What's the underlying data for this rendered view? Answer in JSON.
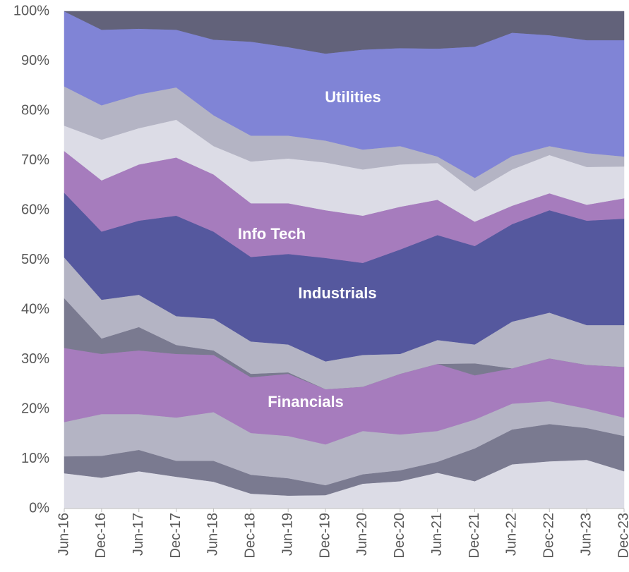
{
  "chart_data": {
    "type": "stacked_area",
    "categories": [
      "Jun-16",
      "Dec-16",
      "Jun-17",
      "Dec-17",
      "Jun-18",
      "Dec-18",
      "Jun-19",
      "Dec-19",
      "Jun-20",
      "Dec-20",
      "Jun-21",
      "Dec-21",
      "Jun-22",
      "Dec-22",
      "Jun-23",
      "Dec-23"
    ],
    "ylim": [
      0,
      100
    ],
    "yticks": [
      {
        "value": 0,
        "label": "0%"
      },
      {
        "value": 10,
        "label": "10%"
      },
      {
        "value": 20,
        "label": "20%"
      },
      {
        "value": 30,
        "label": "30%"
      },
      {
        "value": 40,
        "label": "40%"
      },
      {
        "value": 50,
        "label": "50%"
      },
      {
        "value": 60,
        "label": "60%"
      },
      {
        "value": 70,
        "label": "70%"
      },
      {
        "value": 80,
        "label": "80%"
      },
      {
        "value": 90,
        "label": "90%"
      },
      {
        "value": 100,
        "label": "100%"
      }
    ],
    "series": [
      {
        "name": null,
        "color": "#dcdce6",
        "values": [
          7.1,
          6.2,
          7.5,
          6.4,
          5.4,
          3.0,
          2.6,
          2.7,
          5.0,
          5.5,
          7.2,
          5.5,
          8.9,
          9.5,
          9.8,
          7.5
        ]
      },
      {
        "name": null,
        "color": "#7a7a90",
        "values": [
          3.4,
          4.4,
          4.3,
          3.2,
          4.2,
          3.8,
          3.5,
          2.0,
          1.9,
          2.2,
          2.2,
          6.6,
          7.0,
          7.5,
          6.4,
          7.1
        ]
      },
      {
        "name": null,
        "color": "#b4b4c4",
        "values": [
          6.9,
          8.4,
          7.2,
          8.7,
          9.8,
          8.4,
          8.5,
          8.2,
          8.7,
          7.2,
          6.2,
          5.8,
          5.2,
          4.6,
          3.9,
          3.7
        ]
      },
      {
        "name": "Financials",
        "color": "#a67cbd",
        "values": [
          14.9,
          12.1,
          12.8,
          12.8,
          11.5,
          11.2,
          12.5,
          11.1,
          8.9,
          12.2,
          13.5,
          8.9,
          7.1,
          8.6,
          8.8,
          10.2
        ]
      },
      {
        "name": null,
        "color": "#7a7a90",
        "values": [
          10.0,
          3.1,
          4.7,
          1.8,
          0.9,
          0.7,
          0.3,
          0,
          0,
          0,
          0,
          2.4,
          0,
          0,
          0,
          0
        ]
      },
      {
        "name": null,
        "color": "#b4b4c4",
        "values": [
          8.2,
          7.8,
          6.5,
          5.8,
          6.4,
          6.5,
          5.6,
          5.6,
          6.4,
          4.0,
          4.8,
          3.8,
          9.4,
          9.2,
          8.0,
          8.4
        ]
      },
      {
        "name": "Industrials",
        "color": "#55589e",
        "values": [
          13.0,
          13.7,
          14.9,
          20.2,
          17.5,
          17.0,
          18.2,
          20.8,
          18.5,
          21.0,
          21.1,
          19.8,
          19.6,
          20.6,
          21.0,
          21.4
        ]
      },
      {
        "name": "Info Tech",
        "color": "#a67cbd",
        "values": [
          8.4,
          10.3,
          11.3,
          11.7,
          11.5,
          10.8,
          10.2,
          9.6,
          9.5,
          8.6,
          7.1,
          4.9,
          3.7,
          3.4,
          3.2,
          4.1
        ]
      },
      {
        "name": null,
        "color": "#dcdce6",
        "values": [
          5.1,
          8.2,
          7.3,
          7.6,
          5.7,
          8.4,
          9.0,
          9.6,
          9.3,
          8.5,
          7.4,
          6.1,
          7.3,
          7.7,
          7.6,
          6.4
        ]
      },
      {
        "name": null,
        "color": "#b4b4c4",
        "values": [
          7.9,
          6.9,
          6.8,
          6.5,
          6.2,
          5.2,
          4.6,
          4.4,
          4.0,
          3.7,
          1.3,
          2.7,
          2.7,
          1.8,
          2.8,
          2.0
        ]
      },
      {
        "name": "Utilities",
        "color": "#8084d6",
        "values": [
          15.1,
          15.2,
          13.2,
          11.6,
          15.2,
          18.9,
          17.8,
          17.5,
          20.1,
          19.7,
          21.7,
          26.4,
          24.8,
          22.3,
          22.7,
          23.4
        ]
      },
      {
        "name": null,
        "color": "#62627a",
        "values": [
          0,
          3.7,
          3.5,
          3.7,
          5.7,
          6.1,
          7.2,
          8.5,
          7.7,
          7.4,
          7.5,
          7.1,
          4.3,
          4.8,
          5.8,
          5.8
        ]
      }
    ]
  }
}
